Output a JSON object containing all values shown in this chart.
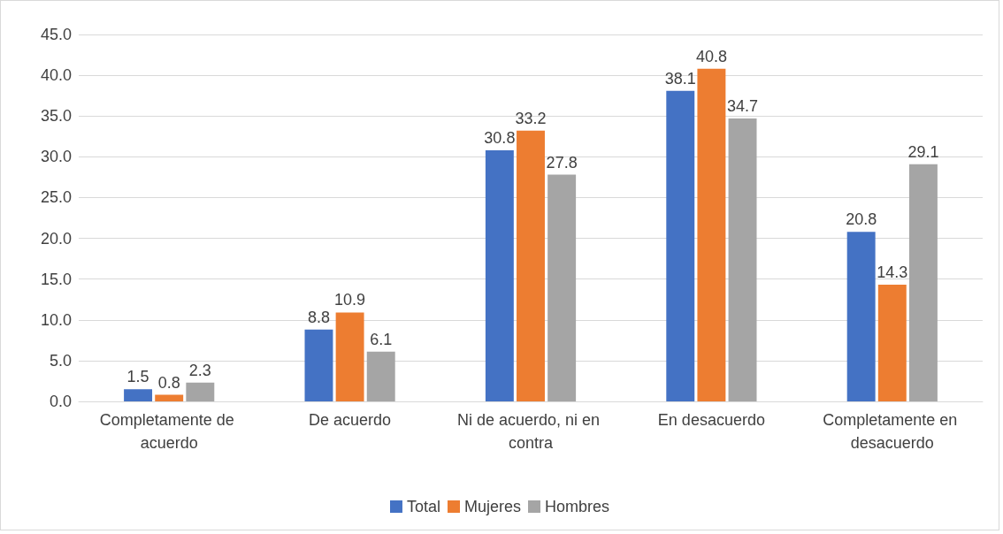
{
  "chart_data": {
    "type": "bar",
    "categories": [
      "Completamente de acuerdo",
      "De acuerdo",
      "Ni de acuerdo, ni en contra",
      "En desacuerdo",
      "Completamente en desacuerdo"
    ],
    "series": [
      {
        "name": "Total",
        "color": "#4472c4",
        "values": [
          1.5,
          8.8,
          30.8,
          38.1,
          20.8
        ]
      },
      {
        "name": "Mujeres",
        "color": "#ed7d31",
        "values": [
          0.8,
          10.9,
          33.2,
          40.8,
          14.3
        ]
      },
      {
        "name": "Hombres",
        "color": "#a5a5a5",
        "values": [
          2.3,
          6.1,
          27.8,
          34.7,
          29.1
        ]
      }
    ],
    "ylim": [
      0,
      45
    ],
    "yticks": [
      {
        "value": 0,
        "label": "0.0"
      },
      {
        "value": 5,
        "label": "5.0"
      },
      {
        "value": 10,
        "label": "10.0"
      },
      {
        "value": 15,
        "label": "15.0"
      },
      {
        "value": 20,
        "label": "20.0"
      },
      {
        "value": 25,
        "label": "25.0"
      },
      {
        "value": 30,
        "label": "30.0"
      },
      {
        "value": 35,
        "label": "35.0"
      },
      {
        "value": 40,
        "label": "40.0"
      },
      {
        "value": 45,
        "label": "45.0"
      }
    ],
    "grid": "y",
    "legend": "bottom",
    "data_labels": true
  }
}
